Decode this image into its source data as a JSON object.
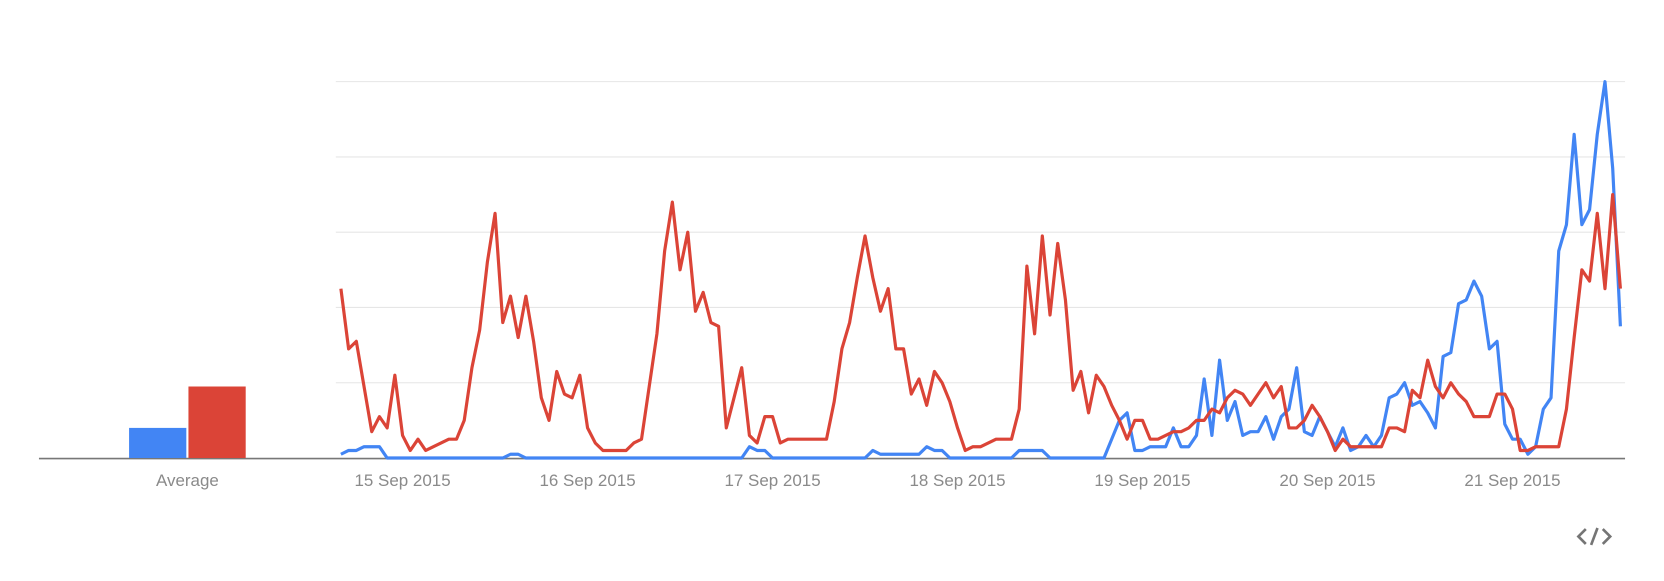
{
  "chart_data": [
    {
      "type": "bar",
      "categories": [
        "Average"
      ],
      "ylim": [
        0,
        100
      ],
      "series": [
        {
          "color": "#4285f4",
          "values": [
            8
          ]
        },
        {
          "color": "#db4437",
          "values": [
            19
          ]
        }
      ]
    },
    {
      "type": "line",
      "ylim": [
        0,
        100
      ],
      "yticks": [
        20,
        40,
        60,
        80,
        100
      ],
      "grid": true,
      "categories": [
        null,
        null,
        null,
        null,
        null,
        null,
        null,
        null,
        "15 Sep 2015",
        null,
        null,
        null,
        null,
        null,
        null,
        null,
        null,
        null,
        null,
        null,
        null,
        null,
        null,
        null,
        null,
        null,
        null,
        null,
        null,
        null,
        null,
        null,
        "16 Sep 2015",
        null,
        null,
        null,
        null,
        null,
        null,
        null,
        null,
        null,
        null,
        null,
        null,
        null,
        null,
        null,
        null,
        null,
        null,
        null,
        null,
        null,
        null,
        null,
        "17 Sep 2015",
        null,
        null,
        null,
        null,
        null,
        null,
        null,
        null,
        null,
        null,
        null,
        null,
        null,
        null,
        null,
        null,
        null,
        null,
        null,
        null,
        null,
        null,
        null,
        "18 Sep 2015",
        null,
        null,
        null,
        null,
        null,
        null,
        null,
        null,
        null,
        null,
        null,
        null,
        null,
        null,
        null,
        null,
        null,
        null,
        null,
        null,
        null,
        null,
        null,
        "19 Sep 2015",
        null,
        null,
        null,
        null,
        null,
        null,
        null,
        null,
        null,
        null,
        null,
        null,
        null,
        null,
        null,
        null,
        null,
        null,
        null,
        null,
        null,
        null,
        null,
        "20 Sep 2015",
        null,
        null,
        null,
        null,
        null,
        null,
        null,
        null,
        null,
        null,
        null,
        null,
        null,
        null,
        null,
        null,
        null,
        null,
        null,
        null,
        null,
        null,
        null,
        "21 Sep 2015",
        null,
        null,
        null,
        null,
        null,
        null,
        null,
        null,
        null,
        null,
        null,
        null,
        null,
        null
      ],
      "series": [
        {
          "color": "#4285f4",
          "values": [
            1,
            2,
            2,
            3,
            3,
            3,
            0,
            0,
            0,
            0,
            0,
            0,
            0,
            0,
            0,
            0,
            0,
            0,
            0,
            0,
            0,
            0,
            1,
            1,
            0,
            0,
            0,
            0,
            0,
            0,
            0,
            0,
            0,
            0,
            0,
            0,
            0,
            0,
            0,
            0,
            0,
            0,
            0,
            0,
            0,
            0,
            0,
            0,
            0,
            0,
            0,
            0,
            0,
            3,
            2,
            2,
            0,
            0,
            0,
            0,
            0,
            0,
            0,
            0,
            0,
            0,
            0,
            0,
            0,
            2,
            1,
            1,
            1,
            1,
            1,
            1,
            3,
            2,
            2,
            0,
            0,
            0,
            0,
            0,
            0,
            0,
            0,
            0,
            2,
            2,
            2,
            2,
            0,
            0,
            0,
            0,
            0,
            0,
            0,
            0,
            5,
            10,
            12,
            2,
            2,
            3,
            3,
            3,
            8,
            3,
            3,
            6,
            21,
            6,
            26,
            10,
            15,
            6,
            7,
            7,
            11,
            5,
            11,
            13,
            24,
            7,
            6,
            11,
            7,
            3,
            8,
            2,
            3,
            6,
            3,
            6,
            16,
            17,
            20,
            14,
            15,
            12,
            8,
            27,
            28,
            41,
            42,
            47,
            43,
            29,
            31,
            9,
            5,
            5,
            1,
            3,
            13,
            16,
            55,
            62,
            86,
            62,
            66,
            86,
            100,
            77,
            35
          ]
        },
        {
          "color": "#db4437",
          "values": [
            45,
            29,
            31,
            19,
            7,
            11,
            8,
            22,
            6,
            2,
            5,
            2,
            3,
            4,
            5,
            5,
            10,
            24,
            34,
            52,
            65,
            36,
            43,
            32,
            43,
            31,
            16,
            10,
            23,
            17,
            16,
            22,
            8,
            4,
            2,
            2,
            2,
            2,
            4,
            5,
            19,
            33,
            55,
            68,
            50,
            60,
            39,
            44,
            36,
            35,
            8,
            16,
            24,
            6,
            4,
            11,
            11,
            4,
            5,
            5,
            5,
            5,
            5,
            5,
            15,
            29,
            36,
            48,
            59,
            48,
            39,
            45,
            29,
            29,
            17,
            21,
            14,
            23,
            20,
            15,
            8,
            2,
            3,
            3,
            4,
            5,
            5,
            5,
            13,
            51,
            33,
            59,
            38,
            57,
            42,
            18,
            23,
            12,
            22,
            19,
            14,
            10,
            5,
            10,
            10,
            5,
            5,
            6,
            7,
            7,
            8,
            10,
            10,
            13,
            12,
            16,
            18,
            17,
            14,
            17,
            20,
            16,
            19,
            8,
            8,
            10,
            14,
            11,
            7,
            2,
            5,
            3,
            3,
            3,
            3,
            3,
            8,
            8,
            7,
            18,
            16,
            26,
            19,
            16,
            20,
            17,
            15,
            11,
            11,
            11,
            17,
            17,
            13,
            2,
            2,
            3,
            3,
            3,
            3,
            13,
            32,
            50,
            47,
            65,
            45,
            70,
            45
          ]
        }
      ]
    }
  ]
}
